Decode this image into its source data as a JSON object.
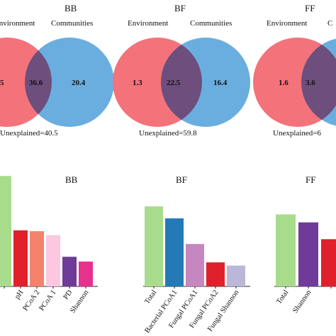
{
  "venn": [
    {
      "title": "BB",
      "left_label": "Environment",
      "right_label": "Communities",
      "left_value": "5",
      "overlap_value": "36.6",
      "right_value": "20.4",
      "unexplained": "Unexplained=40.5"
    },
    {
      "title": "BF",
      "left_label": "Environment",
      "right_label": "Communities",
      "left_value": "1.3",
      "overlap_value": "22.5",
      "right_value": "16.4",
      "unexplained": "Unexplained=59.8"
    },
    {
      "title": "FF",
      "left_label": "Environment",
      "right_label": "C",
      "left_value": "1.6",
      "overlap_value": "3.6",
      "right_value": "",
      "unexplained": "Unexplained=6"
    }
  ],
  "colors": {
    "venn_left": "#f4727a",
    "venn_right": "#6aaee0",
    "venn_overlap": "#6d4e7c",
    "light_green": "#a9db8c",
    "red": "#e0202a",
    "salmon": "#f4826c",
    "pink": "#fcc7df",
    "purple": "#6f3a98",
    "magenta": "#e7318d",
    "blue": "#2479b7",
    "mauve": "#c686c0",
    "lavender": "#bbb7d8"
  },
  "chart_data": [
    {
      "type": "bar",
      "title": "BB",
      "categories": [
        "",
        "pH",
        "PCoA 2",
        "PCoA 1",
        "PD",
        "Shannon"
      ],
      "values": [
        1.38,
        0.7,
        0.69,
        0.64,
        0.37,
        0.31
      ],
      "colors": [
        "#a9db8c",
        "#e0202a",
        "#f4826c",
        "#fcc7df",
        "#6f3a98",
        "#e7318d"
      ],
      "ylim": [
        0,
        1.4
      ]
    },
    {
      "type": "bar",
      "title": "BF",
      "categories": [
        "Total",
        "Bacterial PCoA1",
        "Fungal PCoA1",
        "Fungal PCoA2",
        "Fungal Shannon"
      ],
      "values": [
        1.0,
        0.85,
        0.53,
        0.3,
        0.26
      ],
      "colors": [
        "#a9db8c",
        "#2479b7",
        "#c686c0",
        "#e0202a",
        "#bbb7d8"
      ],
      "ylim": [
        0,
        1.4
      ]
    },
    {
      "type": "bar",
      "title": "FF",
      "categories": [
        "Total",
        "Shannon",
        ""
      ],
      "values": [
        0.9,
        0.8,
        0.59
      ],
      "colors": [
        "#a9db8c",
        "#6f3a98",
        "#e0202a"
      ],
      "ylim": [
        0,
        1.4
      ]
    }
  ]
}
